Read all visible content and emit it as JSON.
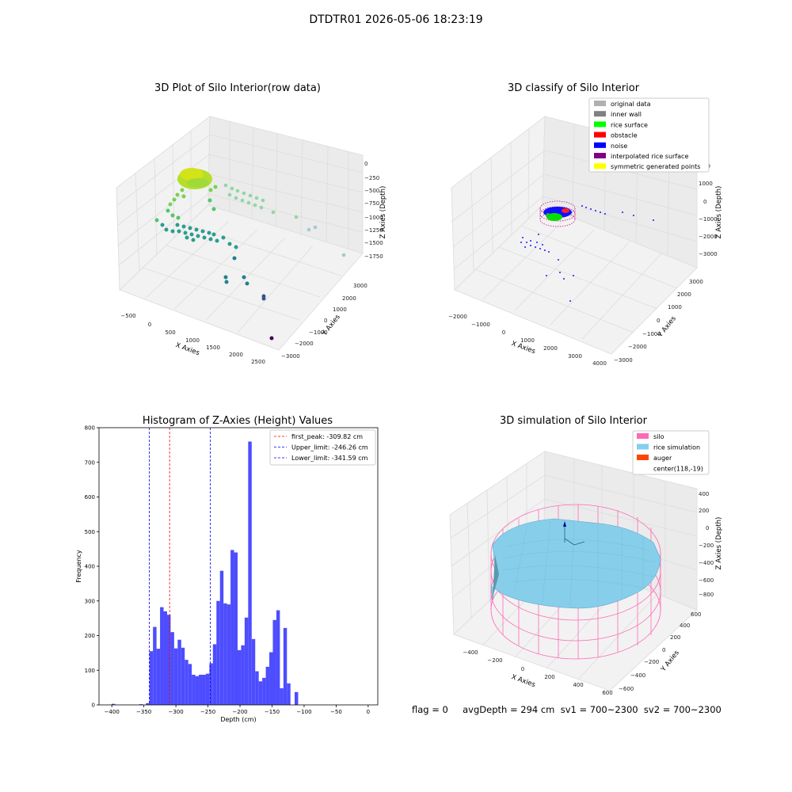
{
  "figure": {
    "title": "DTDTR01 2026-05-06 18:23:19"
  },
  "panels": {
    "raw": {
      "title": "3D Plot of Silo Interior(row data)",
      "xlabel": "X Axies",
      "ylabel": "Y Axies",
      "zlabel": "Z Axies (Depth)",
      "xticks": [
        "−500",
        "0",
        "500",
        "1000",
        "1500",
        "2000",
        "2500"
      ],
      "yticks": [
        "−3000",
        "−2000",
        "−1000",
        "0",
        "1000",
        "2000",
        "3000"
      ],
      "zticks": [
        "0",
        "−250",
        "−500",
        "−750",
        "−1000",
        "−1250",
        "−1500",
        "−1750"
      ]
    },
    "classify": {
      "title": "3D classify of Silo Interior",
      "xlabel": "X Axies",
      "ylabel": "Y Axies",
      "zlabel": "Z Axies (Depth)",
      "xticks": [
        "−2000",
        "−1000",
        "0",
        "1000",
        "2000",
        "3000",
        "4000"
      ],
      "yticks": [
        "−3000",
        "−2000",
        "−1000",
        "0",
        "1000",
        "2000",
        "3000"
      ],
      "zticks": [
        "1000",
        "0",
        "−1000",
        "−2000",
        "−3000"
      ],
      "legend": [
        {
          "label": "original data",
          "color": "#b0b0b0"
        },
        {
          "label": "inner wall",
          "color": "#808080"
        },
        {
          "label": "rice surface",
          "color": "#00ff00"
        },
        {
          "label": "obstacle",
          "color": "#ff0000"
        },
        {
          "label": "noise",
          "color": "#0000ff"
        },
        {
          "label": "interpolated rice surface",
          "color": "#800080"
        },
        {
          "label": "symmetric generated points",
          "color": "#ffff00"
        }
      ],
      "partial_tick": "00"
    },
    "histogram": {
      "title": "Histogram of Z-Axies (Height) Values",
      "xlabel": "Depth (cm)",
      "ylabel": "Frequency",
      "legend": [
        {
          "label": "first_peak: -309.82 cm",
          "color": "#ff0000"
        },
        {
          "label": "Upper_limit: -246.26 cm",
          "color": "#0000ff"
        },
        {
          "label": "Lower_limit: -341.59 cm",
          "color": "#0000ff"
        }
      ]
    },
    "simulation": {
      "title": "3D simulation of Silo Interior",
      "xlabel": "X Axies",
      "ylabel": "Y Axies",
      "zlabel": "Z Axies (Depth)",
      "xticks": [
        "−400",
        "−200",
        "0",
        "200",
        "400",
        "600"
      ],
      "yticks": [
        "−600",
        "−400",
        "−200",
        "0",
        "200",
        "400",
        "600"
      ],
      "zticks": [
        "400",
        "200",
        "0",
        "−200",
        "−400",
        "−600",
        "−800"
      ],
      "legend": [
        {
          "label": "silo",
          "color": "#ff69b4"
        },
        {
          "label": "rice simulation",
          "color": "#87ceeb"
        },
        {
          "label": "auger",
          "color": "#ff4500"
        },
        {
          "label": "center(118,-19)",
          "color": ""
        }
      ]
    }
  },
  "footer": {
    "text": "flag = 0     avgDepth = 294 cm  sv1 = 700~2300  sv2 = 700~2300"
  },
  "chart_data": {
    "type": "bar",
    "title": "Histogram of Z-Axies (Height) Values",
    "xlabel": "Depth (cm)",
    "ylabel": "Frequency",
    "xlim": [
      -420,
      15
    ],
    "ylim": [
      0,
      800
    ],
    "xticks": [
      -400,
      -350,
      -300,
      -250,
      -200,
      -150,
      -100,
      -50,
      0
    ],
    "yticks": [
      0,
      100,
      200,
      300,
      400,
      500,
      600,
      700,
      800
    ],
    "bin_width": 5.5,
    "bins": [
      {
        "x": -397.5,
        "y": 3
      },
      {
        "x": -354.5,
        "y": 2
      },
      {
        "x": -344.0,
        "y": 5
      },
      {
        "x": -338.5,
        "y": 155
      },
      {
        "x": -333.0,
        "y": 225
      },
      {
        "x": -327.5,
        "y": 162
      },
      {
        "x": -322.0,
        "y": 282
      },
      {
        "x": -316.5,
        "y": 270
      },
      {
        "x": -311.0,
        "y": 260
      },
      {
        "x": -305.5,
        "y": 210
      },
      {
        "x": -300.0,
        "y": 163
      },
      {
        "x": -294.5,
        "y": 188
      },
      {
        "x": -289.0,
        "y": 165
      },
      {
        "x": -283.5,
        "y": 130
      },
      {
        "x": -278.0,
        "y": 118
      },
      {
        "x": -272.5,
        "y": 87
      },
      {
        "x": -267.0,
        "y": 83
      },
      {
        "x": -261.5,
        "y": 87
      },
      {
        "x": -256.0,
        "y": 87
      },
      {
        "x": -250.5,
        "y": 90
      },
      {
        "x": -245.0,
        "y": 120
      },
      {
        "x": -239.5,
        "y": 175
      },
      {
        "x": -234.0,
        "y": 300
      },
      {
        "x": -228.5,
        "y": 387
      },
      {
        "x": -223.0,
        "y": 293
      },
      {
        "x": -217.5,
        "y": 290
      },
      {
        "x": -212.0,
        "y": 447
      },
      {
        "x": -206.5,
        "y": 440
      },
      {
        "x": -201.0,
        "y": 158
      },
      {
        "x": -195.5,
        "y": 172
      },
      {
        "x": -190.0,
        "y": 252
      },
      {
        "x": -184.5,
        "y": 760
      },
      {
        "x": -179.0,
        "y": 190
      },
      {
        "x": -173.5,
        "y": 97
      },
      {
        "x": -168.0,
        "y": 68
      },
      {
        "x": -162.5,
        "y": 78
      },
      {
        "x": -157.0,
        "y": 110
      },
      {
        "x": -151.5,
        "y": 152
      },
      {
        "x": -146.0,
        "y": 245
      },
      {
        "x": -140.5,
        "y": 273
      },
      {
        "x": -135.0,
        "y": 48
      },
      {
        "x": -129.5,
        "y": 222
      },
      {
        "x": -124.0,
        "y": 62
      },
      {
        "x": -112.0,
        "y": 37
      }
    ],
    "vlines": [
      {
        "name": "first_peak",
        "x": -309.82,
        "color": "#ff0000"
      },
      {
        "name": "Upper_limit",
        "x": -246.26,
        "color": "#0000ff"
      },
      {
        "name": "Lower_limit",
        "x": -341.59,
        "color": "#0000ff"
      }
    ],
    "bar_color": "#4d4dff"
  }
}
